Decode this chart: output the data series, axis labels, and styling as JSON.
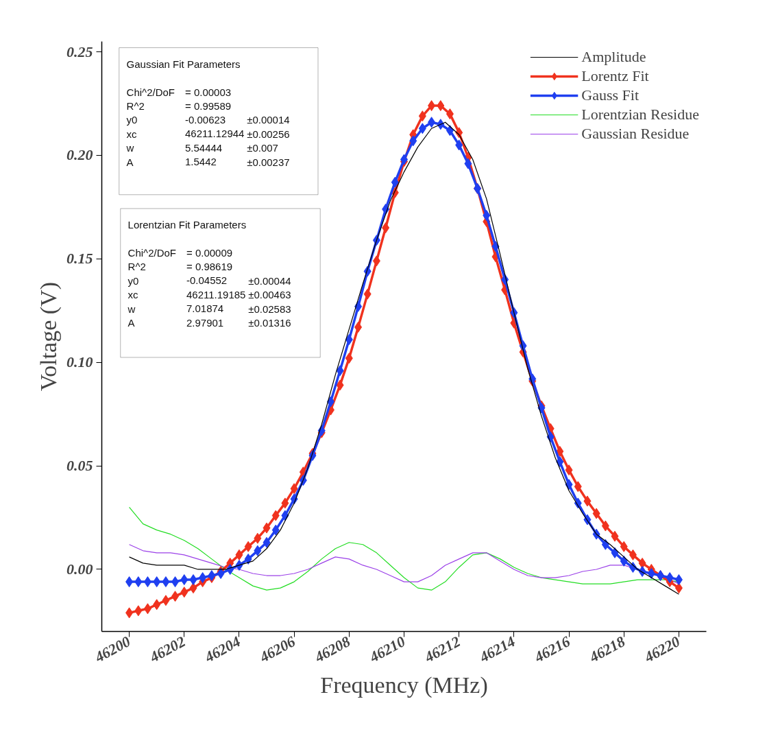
{
  "chart_data": {
    "type": "line",
    "xlabel": "Frequency (MHz)",
    "ylabel": "Voltage (V)",
    "xlim": [
      46199,
      46221
    ],
    "ylim": [
      -0.03,
      0.255
    ],
    "xticks": [
      46200,
      46202,
      46204,
      46206,
      46208,
      46210,
      46212,
      46214,
      46216,
      46218,
      46220
    ],
    "yticks": [
      {
        "value": 0,
        "label": "0.00"
      },
      {
        "value": 0.05,
        "label": "0.05"
      },
      {
        "value": 0.1,
        "label": "0.10"
      },
      {
        "value": 0.15,
        "label": "0.15"
      },
      {
        "value": 0.2,
        "label": "0.20"
      },
      {
        "value": 0.25,
        "label": "0.25"
      }
    ],
    "grid": false,
    "legend": "top right",
    "annotations": [
      "Gaussian Fit Parameters\n\nChi^2/DoF\t= 0.00003\nR^2\t=  0.99589\ny0\t-0.00623\t±0.00014\nxc\t46211.12944\t±0.00256\nw\t5.54444\t±0.007\nA\t1.5442\t±0.00237",
      "Lorentzian Fit Parameters\n\nChi^2/DoF\t= 0.00009\nR^2\t=  0.98619\ny0\t-0.04552\t±0.00044\nxc\t46211.19185\t±0.00463\nw\t7.01874\t±0.02583\nA\t2.97901\t±0.01316"
    ],
    "series": [
      {
        "name": "Amplitude",
        "color": "#000000",
        "marker": "none",
        "x": [
          46200,
          46200.5,
          46201,
          46201.5,
          46202,
          46202.5,
          46203,
          46203.5,
          46204,
          46204.5,
          46205,
          46205.5,
          46206,
          46206.5,
          46207,
          46207.5,
          46208,
          46208.5,
          46209,
          46209.5,
          46210,
          46210.5,
          46211,
          46211.5,
          46212,
          46212.5,
          46213,
          46213.5,
          46214,
          46214.5,
          46215,
          46215.5,
          46216,
          46216.5,
          46217,
          46217.5,
          46218,
          46218.5,
          46219,
          46219.5,
          46220
        ],
        "values": [
          0.006,
          0.003,
          0.002,
          0.002,
          0.002,
          0.0,
          0.0,
          0.0,
          0.002,
          0.004,
          0.01,
          0.019,
          0.032,
          0.049,
          0.07,
          0.094,
          0.116,
          0.138,
          0.159,
          0.178,
          0.192,
          0.204,
          0.213,
          0.216,
          0.21,
          0.198,
          0.179,
          0.152,
          0.124,
          0.097,
          0.074,
          0.054,
          0.038,
          0.027,
          0.017,
          0.012,
          0.006,
          0.0,
          -0.004,
          -0.008,
          -0.012
        ]
      },
      {
        "name": "Lorentz Fit",
        "color": "#f0321e",
        "marker": "diamond",
        "x": [
          46200,
          46200.33,
          46200.67,
          46201,
          46201.33,
          46201.67,
          46202,
          46202.33,
          46202.67,
          46203,
          46203.33,
          46203.67,
          46204,
          46204.33,
          46204.67,
          46205,
          46205.33,
          46205.67,
          46206,
          46206.33,
          46206.67,
          46207,
          46207.33,
          46207.67,
          46208,
          46208.33,
          46208.67,
          46209,
          46209.33,
          46209.67,
          46210,
          46210.33,
          46210.67,
          46211,
          46211.33,
          46211.67,
          46212,
          46212.33,
          46212.67,
          46213,
          46213.33,
          46213.67,
          46214,
          46214.33,
          46214.67,
          46215,
          46215.33,
          46215.67,
          46216,
          46216.33,
          46216.67,
          46217,
          46217.33,
          46217.67,
          46218,
          46218.33,
          46218.67,
          46219,
          46219.33,
          46219.67,
          46220
        ],
        "values": [
          -0.021,
          -0.02,
          -0.019,
          -0.017,
          -0.015,
          -0.013,
          -0.011,
          -0.009,
          -0.006,
          -0.004,
          -0.001,
          0.003,
          0.007,
          0.011,
          0.015,
          0.02,
          0.026,
          0.032,
          0.039,
          0.047,
          0.056,
          0.066,
          0.077,
          0.089,
          0.102,
          0.117,
          0.133,
          0.149,
          0.165,
          0.182,
          0.197,
          0.21,
          0.219,
          0.224,
          0.224,
          0.22,
          0.211,
          0.199,
          0.184,
          0.168,
          0.151,
          0.135,
          0.119,
          0.105,
          0.091,
          0.079,
          0.068,
          0.057,
          0.048,
          0.04,
          0.033,
          0.027,
          0.021,
          0.016,
          0.011,
          0.007,
          0.003,
          0.0,
          -0.003,
          -0.006,
          -0.009
        ]
      },
      {
        "name": "Gauss Fit",
        "color": "#1f3ff0",
        "marker": "diamond",
        "x": [
          46200,
          46200.33,
          46200.67,
          46201,
          46201.33,
          46201.67,
          46202,
          46202.33,
          46202.67,
          46203,
          46203.33,
          46203.67,
          46204,
          46204.33,
          46204.67,
          46205,
          46205.33,
          46205.67,
          46206,
          46206.33,
          46206.67,
          46207,
          46207.33,
          46207.67,
          46208,
          46208.33,
          46208.67,
          46209,
          46209.33,
          46209.67,
          46210,
          46210.33,
          46210.67,
          46211,
          46211.33,
          46211.67,
          46212,
          46212.33,
          46212.67,
          46213,
          46213.33,
          46213.67,
          46214,
          46214.33,
          46214.67,
          46215,
          46215.33,
          46215.67,
          46216,
          46216.33,
          46216.67,
          46217,
          46217.33,
          46217.67,
          46218,
          46218.33,
          46218.67,
          46219,
          46219.33,
          46219.67,
          46220
        ],
        "values": [
          -0.006,
          -0.006,
          -0.006,
          -0.006,
          -0.006,
          -0.006,
          -0.005,
          -0.005,
          -0.004,
          -0.003,
          -0.002,
          0.0,
          0.002,
          0.005,
          0.009,
          0.013,
          0.019,
          0.026,
          0.034,
          0.043,
          0.055,
          0.067,
          0.081,
          0.096,
          0.111,
          0.127,
          0.144,
          0.159,
          0.174,
          0.187,
          0.198,
          0.207,
          0.213,
          0.216,
          0.215,
          0.212,
          0.205,
          0.196,
          0.184,
          0.171,
          0.156,
          0.14,
          0.124,
          0.108,
          0.092,
          0.078,
          0.064,
          0.052,
          0.041,
          0.032,
          0.024,
          0.017,
          0.012,
          0.008,
          0.004,
          0.001,
          -0.001,
          -0.002,
          -0.003,
          -0.004,
          -0.005
        ]
      },
      {
        "name": "Lorentzian Residue",
        "color": "#22dd22",
        "marker": "none",
        "x": [
          46200,
          46200.5,
          46201,
          46201.5,
          46202,
          46202.5,
          46203,
          46203.5,
          46204,
          46204.5,
          46205,
          46205.5,
          46206,
          46206.5,
          46207,
          46207.5,
          46208,
          46208.5,
          46209,
          46209.5,
          46210,
          46210.5,
          46211,
          46211.5,
          46212,
          46212.5,
          46213,
          46213.5,
          46214,
          46214.5,
          46215,
          46215.5,
          46216,
          46216.5,
          46217,
          46217.5,
          46218,
          46218.5,
          46219,
          46219.5,
          46220
        ],
        "values": [
          0.03,
          0.022,
          0.019,
          0.017,
          0.014,
          0.01,
          0.005,
          0.0,
          -0.004,
          -0.008,
          -0.01,
          -0.009,
          -0.006,
          -0.001,
          0.005,
          0.01,
          0.013,
          0.012,
          0.008,
          0.002,
          -0.004,
          -0.009,
          -0.01,
          -0.006,
          0.001,
          0.007,
          0.008,
          0.005,
          0.001,
          -0.002,
          -0.004,
          -0.005,
          -0.006,
          -0.007,
          -0.007,
          -0.007,
          -0.006,
          -0.005,
          -0.005,
          -0.005,
          -0.006
        ]
      },
      {
        "name": "Gaussian Residue",
        "color": "#9b40e8",
        "marker": "none",
        "x": [
          46200,
          46200.5,
          46201,
          46201.5,
          46202,
          46202.5,
          46203,
          46203.5,
          46204,
          46204.5,
          46205,
          46205.5,
          46206,
          46206.5,
          46207,
          46207.5,
          46208,
          46208.5,
          46209,
          46209.5,
          46210,
          46210.5,
          46211,
          46211.5,
          46212,
          46212.5,
          46213,
          46213.5,
          46214,
          46214.5,
          46215,
          46215.5,
          46216,
          46216.5,
          46217,
          46217.5,
          46218,
          46218.5,
          46219,
          46219.5,
          46220
        ],
        "values": [
          0.012,
          0.009,
          0.008,
          0.008,
          0.007,
          0.005,
          0.003,
          0.001,
          0.0,
          -0.002,
          -0.003,
          -0.003,
          -0.002,
          0.0,
          0.003,
          0.006,
          0.005,
          0.002,
          0.0,
          -0.003,
          -0.006,
          -0.006,
          -0.003,
          0.002,
          0.005,
          0.008,
          0.008,
          0.004,
          0.0,
          -0.003,
          -0.004,
          -0.004,
          -0.003,
          -0.001,
          0.0,
          0.002,
          0.002,
          0.0,
          -0.002,
          -0.004,
          -0.007
        ]
      }
    ]
  }
}
